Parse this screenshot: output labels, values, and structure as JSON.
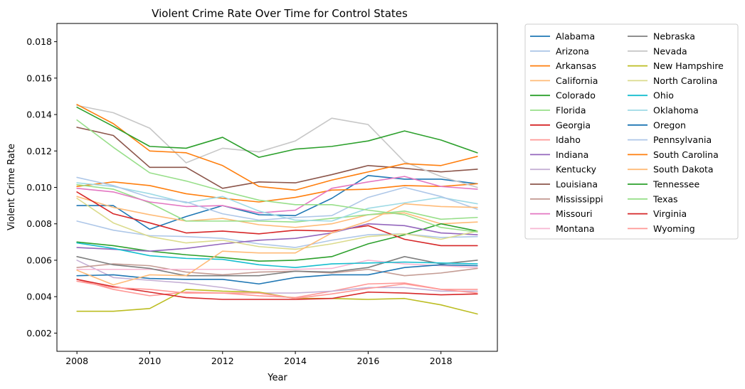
{
  "chart_data": {
    "type": "line",
    "title": "Violent Crime Rate Over Time for Control States",
    "xlabel": "Year",
    "ylabel": "Violent Crime Rate",
    "xlim": [
      2007.45,
      2019.55
    ],
    "ylim": [
      0.001,
      0.019
    ],
    "xticks": [
      2008,
      2010,
      2012,
      2014,
      2016,
      2018
    ],
    "xtick_labels": [
      "2008",
      "2010",
      "2012",
      "2014",
      "2016",
      "2018"
    ],
    "yticks": [
      0.002,
      0.004,
      0.006,
      0.008,
      0.01,
      0.012,
      0.014,
      0.016,
      0.018
    ],
    "ytick_labels": [
      "0.002",
      "0.004",
      "0.006",
      "0.008",
      "0.010",
      "0.012",
      "0.014",
      "0.016",
      "0.018"
    ],
    "grid": false,
    "legend": "outside-right, 2 columns",
    "x": [
      2008,
      2009,
      2010,
      2011,
      2012,
      2013,
      2014,
      2015,
      2016,
      2017,
      2018,
      2019
    ],
    "series": [
      {
        "name": "Alabama",
        "color": "#1f77b4",
        "values": [
          0.009,
          0.009,
          0.0077,
          0.0084,
          0.009,
          0.0085,
          0.00845,
          0.0094,
          0.01065,
          0.01045,
          0.01045,
          0.0102
        ]
      },
      {
        "name": "Arizona",
        "color": "#aec7e8",
        "values": [
          0.00815,
          0.00765,
          0.00735,
          0.0073,
          0.0072,
          0.0069,
          0.0067,
          0.0071,
          0.0074,
          0.00745,
          0.00725,
          0.0073
        ]
      },
      {
        "name": "Arkansas",
        "color": "#ff7f0e",
        "values": [
          0.01005,
          0.0103,
          0.0101,
          0.00965,
          0.0094,
          0.0092,
          0.00945,
          0.00985,
          0.0099,
          0.0101,
          0.01005,
          0.0102
        ]
      },
      {
        "name": "California",
        "color": "#ffbb78",
        "values": [
          0.0095,
          0.0089,
          0.0085,
          0.00815,
          0.0083,
          0.00795,
          0.0078,
          0.008,
          0.0085,
          0.0086,
          0.008,
          0.0081
        ]
      },
      {
        "name": "Colorado",
        "color": "#2ca02c",
        "values": [
          0.007,
          0.0068,
          0.0065,
          0.0063,
          0.00615,
          0.00595,
          0.006,
          0.0062,
          0.0069,
          0.0074,
          0.008,
          0.0076
        ]
      },
      {
        "name": "Florida",
        "color": "#98df8a",
        "values": [
          0.01015,
          0.0099,
          0.00915,
          0.00815,
          0.00815,
          0.00815,
          0.0081,
          0.0083,
          0.0085,
          0.0087,
          0.00825,
          0.00835
        ]
      },
      {
        "name": "Georgia",
        "color": "#d62728",
        "values": [
          0.00975,
          0.00855,
          0.00805,
          0.0075,
          0.0076,
          0.00745,
          0.00765,
          0.0076,
          0.0079,
          0.00715,
          0.0068,
          0.0068
        ]
      },
      {
        "name": "Idaho",
        "color": "#ff9896",
        "values": [
          0.00495,
          0.0044,
          0.00405,
          0.00425,
          0.0042,
          0.00405,
          0.00395,
          0.0043,
          0.0047,
          0.00475,
          0.0044,
          0.0044
        ]
      },
      {
        "name": "Indiana",
        "color": "#9467bd",
        "values": [
          0.0067,
          0.0066,
          0.0065,
          0.00665,
          0.0069,
          0.0071,
          0.0072,
          0.0075,
          0.008,
          0.0079,
          0.0075,
          0.0074
        ]
      },
      {
        "name": "Kentucky",
        "color": "#c5b0d5",
        "values": [
          0.006,
          0.00505,
          0.0049,
          0.00475,
          0.0045,
          0.0042,
          0.0042,
          0.0043,
          0.0045,
          0.0045,
          0.0043,
          0.0043
        ]
      },
      {
        "name": "Louisiana",
        "color": "#8c564b",
        "values": [
          0.0133,
          0.01285,
          0.0111,
          0.0111,
          0.00995,
          0.0103,
          0.01025,
          0.0107,
          0.0112,
          0.01105,
          0.01085,
          0.011
        ]
      },
      {
        "name": "Mississippi",
        "color": "#c49c94",
        "values": [
          0.0056,
          0.0058,
          0.0057,
          0.00535,
          0.0052,
          0.00535,
          0.0054,
          0.0053,
          0.0055,
          0.00515,
          0.0053,
          0.00555
        ]
      },
      {
        "name": "Missouri",
        "color": "#e377c2",
        "values": [
          0.00995,
          0.00975,
          0.0092,
          0.00895,
          0.009,
          0.0086,
          0.00875,
          0.00995,
          0.0103,
          0.0106,
          0.01005,
          0.0099
        ]
      },
      {
        "name": "Montana",
        "color": "#f7b6d2",
        "values": [
          0.0055,
          0.0055,
          0.0055,
          0.0055,
          0.0055,
          0.0055,
          0.0055,
          0.00555,
          0.006,
          0.0058,
          0.0057,
          0.0056
        ]
      },
      {
        "name": "Nebraska",
        "color": "#7f7f7f",
        "values": [
          0.0062,
          0.00575,
          0.00555,
          0.00515,
          0.00515,
          0.00515,
          0.0054,
          0.00535,
          0.0056,
          0.0062,
          0.0058,
          0.006
        ]
      },
      {
        "name": "Nevada",
        "color": "#c7c7c7",
        "values": [
          0.0145,
          0.0141,
          0.01325,
          0.01135,
          0.01215,
          0.01195,
          0.01255,
          0.0138,
          0.01345,
          0.0114,
          0.0106,
          0.01
        ]
      },
      {
        "name": "New Hampshire",
        "color": "#bcbd22",
        "values": [
          0.0032,
          0.0032,
          0.00335,
          0.0044,
          0.0043,
          0.00425,
          0.0039,
          0.0039,
          0.00385,
          0.0039,
          0.00355,
          0.00305
        ]
      },
      {
        "name": "North Carolina",
        "color": "#dbdb8d",
        "values": [
          0.0094,
          0.00805,
          0.0073,
          0.00695,
          0.0071,
          0.00675,
          0.0066,
          0.0069,
          0.0073,
          0.00745,
          0.00715,
          0.0076
        ]
      },
      {
        "name": "Ohio",
        "color": "#17becf",
        "values": [
          0.00695,
          0.00665,
          0.00625,
          0.0061,
          0.00605,
          0.00575,
          0.0056,
          0.0058,
          0.00585,
          0.0059,
          0.00585,
          0.0058
        ]
      },
      {
        "name": "Oklahoma",
        "color": "#9edae5",
        "values": [
          0.01025,
          0.01005,
          0.00965,
          0.00915,
          0.0095,
          0.0087,
          0.0082,
          0.00815,
          0.00885,
          0.00915,
          0.00945,
          0.0091
        ]
      },
      {
        "name": "Oregon",
        "color": "#1f77b4",
        "values": [
          0.00515,
          0.0052,
          0.005,
          0.00495,
          0.00495,
          0.0047,
          0.00505,
          0.0052,
          0.0052,
          0.0056,
          0.00575,
          0.0057
        ]
      },
      {
        "name": "Pennsylvania",
        "color": "#aec7e8",
        "values": [
          0.01055,
          0.0101,
          0.00945,
          0.0092,
          0.00855,
          0.0082,
          0.00835,
          0.00845,
          0.00945,
          0.01,
          0.0095,
          0.0088
        ]
      },
      {
        "name": "South Carolina",
        "color": "#ff7f0e",
        "values": [
          0.01455,
          0.0135,
          0.012,
          0.0119,
          0.0112,
          0.01005,
          0.00985,
          0.0104,
          0.01085,
          0.0113,
          0.0112,
          0.0117
        ]
      },
      {
        "name": "South Dakota",
        "color": "#ffbb78",
        "values": [
          0.00545,
          0.00465,
          0.0052,
          0.00515,
          0.0065,
          0.0064,
          0.0064,
          0.0075,
          0.00815,
          0.0091,
          0.00895,
          0.0089
        ]
      },
      {
        "name": "Tennessee",
        "color": "#2ca02c",
        "values": [
          0.0144,
          0.01335,
          0.01225,
          0.01215,
          0.01275,
          0.01165,
          0.0121,
          0.01225,
          0.01255,
          0.0131,
          0.0126,
          0.0119
        ]
      },
      {
        "name": "Texas",
        "color": "#98df8a",
        "values": [
          0.0137,
          0.0122,
          0.0108,
          0.01035,
          0.0098,
          0.0093,
          0.00905,
          0.00905,
          0.00875,
          0.0085,
          0.0078,
          0.00755
        ]
      },
      {
        "name": "Virginia",
        "color": "#d62728",
        "values": [
          0.00495,
          0.00455,
          0.00425,
          0.00395,
          0.00385,
          0.00385,
          0.00385,
          0.0039,
          0.00425,
          0.0042,
          0.0041,
          0.00415
        ]
      },
      {
        "name": "Wyoming",
        "color": "#ff9896",
        "values": [
          0.00485,
          0.0045,
          0.0044,
          0.0042,
          0.0042,
          0.0042,
          0.0039,
          0.00415,
          0.00445,
          0.0047,
          0.0044,
          0.0042
        ]
      }
    ]
  }
}
